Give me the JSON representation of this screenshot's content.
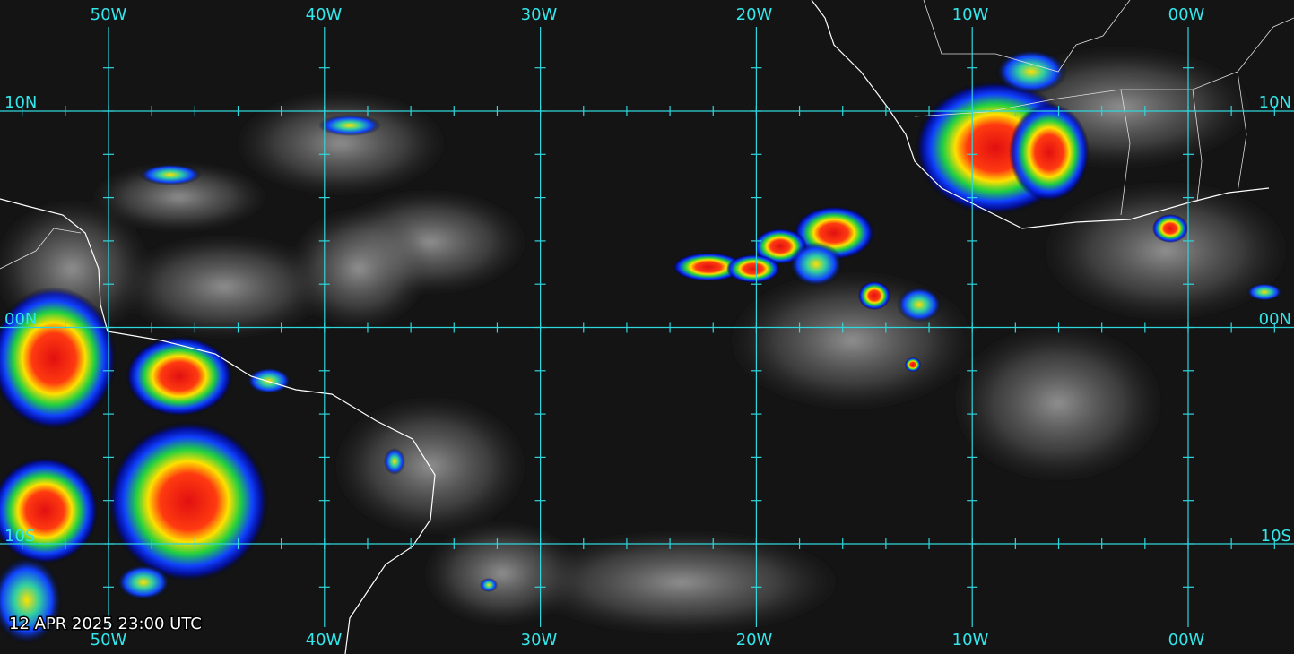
{
  "top_labels": [
    "50W",
    "40W",
    "30W",
    "20W",
    "10W",
    "00W"
  ],
  "bottom_labels": [
    "50W",
    "40W",
    "30W",
    "20W",
    "10W",
    "00W"
  ],
  "left_labels": [
    "10N",
    "00N",
    "10S"
  ],
  "right_labels": [
    "10N",
    "00N",
    "10S"
  ],
  "timestamp": "12 APR 2025 23:00 UTC"
}
